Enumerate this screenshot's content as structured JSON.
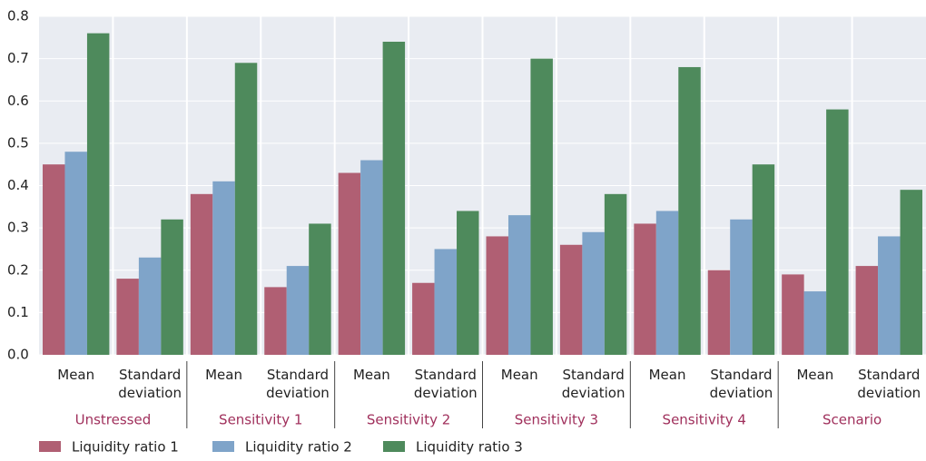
{
  "chart_data": {
    "type": "bar",
    "categories": [
      "Mean",
      "Standard deviation",
      "Mean",
      "Standard deviation",
      "Mean",
      "Standard deviation",
      "Mean",
      "Standard deviation",
      "Mean",
      "Standard deviation",
      "Mean",
      "Standard deviation"
    ],
    "groups": [
      "Unstressed",
      "Sensitivity 1",
      "Sensitivity 2",
      "Sensitivity 3",
      "Sensitivity 4",
      "Scenario"
    ],
    "series": [
      {
        "name": "Liquidity ratio 1",
        "color": "#b05f73",
        "values": [
          0.45,
          0.18,
          0.38,
          0.16,
          0.43,
          0.17,
          0.28,
          0.26,
          0.31,
          0.2,
          0.19,
          0.21
        ]
      },
      {
        "name": "Liquidity ratio 2",
        "color": "#7fa4c9",
        "values": [
          0.48,
          0.23,
          0.41,
          0.21,
          0.46,
          0.25,
          0.33,
          0.29,
          0.34,
          0.32,
          0.15,
          0.28
        ]
      },
      {
        "name": "Liquidity ratio 3",
        "color": "#4e8a5c",
        "values": [
          0.76,
          0.32,
          0.69,
          0.31,
          0.74,
          0.34,
          0.7,
          0.38,
          0.68,
          0.45,
          0.58,
          0.39
        ]
      }
    ],
    "ylim": [
      0,
      0.8
    ],
    "yticks": [
      {
        "value": 0,
        "label": "0.0"
      },
      0.1,
      0.2,
      0.3,
      0.4,
      0.5,
      0.6,
      0.7,
      0.8
    ],
    "grid": true
  }
}
